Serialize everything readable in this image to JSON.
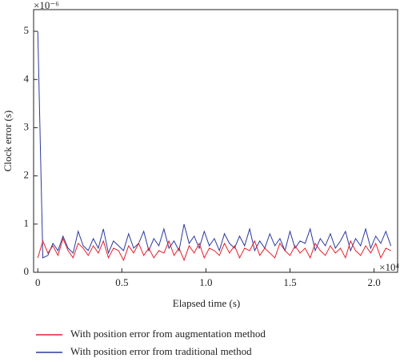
{
  "chart_data": {
    "type": "line",
    "y_label": "Clock error (s)",
    "x_label": "Elapsed time (s)",
    "y_multiplier": "×10⁻⁶",
    "x_multiplier": "×10⁴",
    "xlim": [
      -0.025,
      2.14
    ],
    "ylim": [
      0,
      5.45
    ],
    "xticks": [
      0,
      0.5,
      {
        "value": 1,
        "label": "1.0"
      },
      1.5,
      {
        "value": 2,
        "label": "2.0"
      }
    ],
    "yticks": [
      0,
      1,
      2,
      3,
      4,
      5
    ],
    "grid": false,
    "legend": "bottom",
    "x": [
      0,
      0.03,
      0.06,
      0.09,
      0.12,
      0.15,
      0.18,
      0.21,
      0.24,
      0.27,
      0.3,
      0.33,
      0.36,
      0.39,
      0.42,
      0.45,
      0.48,
      0.51,
      0.54,
      0.57,
      0.6,
      0.63,
      0.66,
      0.69,
      0.72,
      0.75,
      0.78,
      0.81,
      0.84,
      0.87,
      0.9,
      0.93,
      0.96,
      0.99,
      1.02,
      1.05,
      1.08,
      1.11,
      1.14,
      1.17,
      1.2,
      1.23,
      1.26,
      1.29,
      1.32,
      1.35,
      1.38,
      1.41,
      1.44,
      1.47,
      1.5,
      1.53,
      1.56,
      1.59,
      1.62,
      1.65,
      1.68,
      1.71,
      1.74,
      1.77,
      1.8,
      1.83,
      1.86,
      1.89,
      1.92,
      1.95,
      1.98,
      2.01,
      2.04,
      2.07,
      2.1
    ],
    "series": [
      {
        "name": "With position error from augmentation method",
        "color": "#e8202a",
        "values": [
          0.3,
          0.65,
          0.4,
          0.55,
          0.35,
          0.7,
          0.45,
          0.3,
          0.6,
          0.5,
          0.35,
          0.55,
          0.4,
          0.65,
          0.3,
          0.5,
          0.45,
          0.25,
          0.55,
          0.4,
          0.6,
          0.35,
          0.5,
          0.3,
          0.45,
          0.4,
          0.65,
          0.35,
          0.5,
          0.25,
          0.55,
          0.4,
          0.6,
          0.3,
          0.5,
          0.45,
          0.35,
          0.6,
          0.4,
          0.55,
          0.3,
          0.5,
          0.45,
          0.65,
          0.35,
          0.5,
          0.4,
          0.3,
          0.6,
          0.45,
          0.35,
          0.55,
          0.4,
          0.5,
          0.3,
          0.6,
          0.45,
          0.35,
          0.55,
          0.4,
          0.5,
          0.3,
          0.65,
          0.45,
          0.35,
          0.55,
          0.4,
          0.6,
          0.3,
          0.5,
          0.45
        ]
      },
      {
        "name": "With position error from traditional method",
        "color": "#2b3a9c",
        "values": [
          5,
          0.3,
          0.35,
          0.6,
          0.45,
          0.75,
          0.5,
          0.4,
          0.85,
          0.55,
          0.45,
          0.7,
          0.5,
          0.9,
          0.4,
          0.65,
          0.55,
          0.45,
          0.8,
          0.5,
          0.6,
          0.85,
          0.45,
          0.7,
          0.55,
          0.9,
          0.5,
          0.65,
          0.45,
          1.0,
          0.6,
          0.75,
          0.5,
          0.85,
          0.55,
          0.7,
          0.45,
          0.8,
          0.6,
          0.5,
          0.75,
          0.55,
          0.9,
          0.45,
          0.65,
          0.5,
          0.8,
          0.55,
          0.7,
          0.45,
          0.85,
          0.5,
          0.65,
          0.6,
          0.9,
          0.45,
          0.7,
          0.55,
          0.8,
          0.5,
          0.65,
          0.85,
          0.45,
          0.7,
          0.55,
          0.9,
          0.5,
          0.75,
          0.6,
          0.85,
          0.55
        ]
      }
    ]
  }
}
